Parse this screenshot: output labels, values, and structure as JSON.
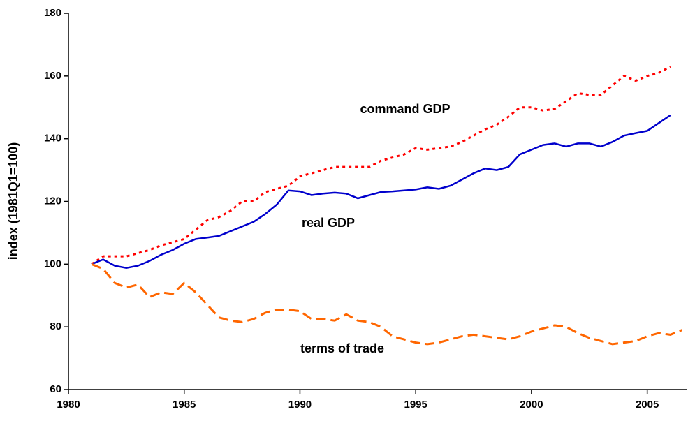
{
  "chart_data": {
    "type": "line",
    "ylabel": "index (1981Q1=100)",
    "x": [
      1981,
      1981.5,
      1982,
      1982.5,
      1983,
      1983.5,
      1984,
      1984.5,
      1985,
      1985.5,
      1986,
      1986.5,
      1987,
      1987.5,
      1988,
      1988.5,
      1989,
      1989.5,
      1990,
      1990.5,
      1991,
      1991.5,
      1992,
      1992.5,
      1993,
      1993.5,
      1994,
      1994.5,
      1995,
      1995.5,
      1996,
      1996.5,
      1997,
      1997.5,
      1998,
      1998.5,
      1999,
      1999.5,
      2000,
      2000.5,
      2001,
      2001.5,
      2002,
      2002.5,
      2003,
      2003.5,
      2004,
      2004.5,
      2005,
      2005.5,
      2006,
      2006.5
    ],
    "series": [
      {
        "name": "command GDP",
        "color": "#ff0000",
        "style": "dotted",
        "values": [
          100,
          102.5,
          102.5,
          102.5,
          103.5,
          104.5,
          106,
          107,
          108,
          111,
          114,
          115,
          117,
          120,
          120,
          123,
          124,
          125,
          128,
          129,
          130,
          131,
          131,
          131,
          131,
          133,
          134,
          135,
          137,
          136.5,
          137,
          137.5,
          139,
          141,
          143,
          144.5,
          147,
          150,
          150,
          149,
          149.5,
          152,
          154.5,
          154,
          154,
          157,
          160,
          158.5,
          160,
          161,
          163,
          null
        ]
      },
      {
        "name": "real GDP",
        "color": "#0000cc",
        "style": "solid",
        "values": [
          100,
          101.5,
          99.5,
          98.8,
          99.5,
          101,
          103,
          104.5,
          106.5,
          108,
          108.5,
          109,
          110.5,
          112,
          113.5,
          116,
          119,
          123.5,
          123.2,
          122,
          122.5,
          122.8,
          122.5,
          121,
          122,
          123,
          123.2,
          123.5,
          123.8,
          124.5,
          124,
          125,
          127,
          129,
          130.5,
          130,
          131,
          135,
          136.5,
          138,
          138.5,
          137.5,
          138.5,
          138.5,
          137.5,
          139,
          141,
          141.8,
          142.5,
          145,
          147.5,
          null
        ]
      },
      {
        "name": "terms of trade",
        "color": "#ff6600",
        "style": "dashed",
        "values": [
          100,
          98.5,
          94,
          92.5,
          93.5,
          89.5,
          91,
          90.5,
          94,
          91,
          87,
          83,
          82,
          81.5,
          82.5,
          84.5,
          85.5,
          85.5,
          85,
          82.5,
          82.5,
          82,
          84,
          82,
          81.5,
          80,
          77,
          76,
          75,
          74.5,
          75,
          76,
          77,
          77.5,
          77,
          76.5,
          76,
          77,
          78.5,
          79.5,
          80.5,
          80,
          78,
          76.5,
          75.5,
          74.5,
          75,
          75.5,
          77,
          78,
          77.5,
          79
        ]
      }
    ],
    "xlim": [
      1980,
      2006.7
    ],
    "xticks": [
      1980,
      1985,
      1990,
      1995,
      2000,
      2005
    ],
    "ylim": [
      60,
      180
    ],
    "yticks": [
      60,
      80,
      100,
      120,
      140,
      160,
      180
    ],
    "grid": false
  }
}
